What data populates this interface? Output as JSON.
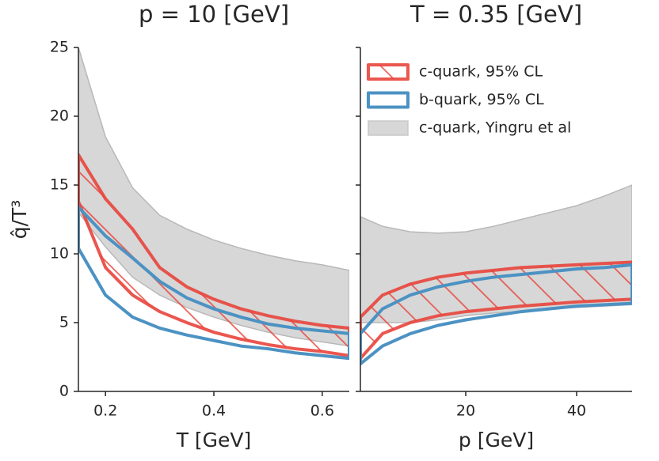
{
  "chart_data": [
    {
      "type": "band",
      "title": "p = 10 [GeV]",
      "xlabel": "T [GeV]",
      "ylabel": "q̂/T³",
      "x": [
        0.15,
        0.2,
        0.25,
        0.3,
        0.35,
        0.4,
        0.45,
        0.5,
        0.55,
        0.6,
        0.65
      ],
      "xlim": [
        0.15,
        0.65
      ],
      "xticks": [
        0.2,
        0.4,
        0.6
      ],
      "ylim": [
        0,
        25
      ],
      "yticks": [
        0,
        5,
        10,
        15,
        20,
        25
      ],
      "series": [
        {
          "color": "#d3d3d3",
          "style": "solid",
          "lower": [
            13.0,
            10.5,
            8.3,
            7.0,
            6.1,
            5.4,
            4.8,
            4.3,
            3.9,
            3.6,
            3.3
          ],
          "upper": [
            25,
            18.5,
            14.8,
            12.8,
            11.8,
            11.0,
            10.4,
            9.9,
            9.5,
            9.2,
            8.8
          ]
        },
        {
          "color": "#e8453c",
          "style": "hatch",
          "lower": [
            13.8,
            9.0,
            7.0,
            5.8,
            5.0,
            4.3,
            3.8,
            3.4,
            3.1,
            2.9,
            2.6
          ],
          "upper": [
            17.2,
            14.0,
            11.8,
            9.0,
            7.6,
            6.7,
            6.0,
            5.5,
            5.1,
            4.8,
            4.6
          ]
        },
        {
          "color": "#4c92c3",
          "style": "outline",
          "lower": [
            10.4,
            7.0,
            5.4,
            4.6,
            4.1,
            3.7,
            3.3,
            3.1,
            2.8,
            2.6,
            2.4
          ],
          "upper": [
            13.4,
            11.3,
            9.7,
            8.0,
            6.8,
            6.0,
            5.4,
            4.9,
            4.6,
            4.4,
            4.2
          ]
        }
      ]
    },
    {
      "type": "band",
      "title": "T = 0.35 [GeV]",
      "xlabel": "p [GeV]",
      "sharey": true,
      "legend": "upper right",
      "x": [
        1,
        5,
        10,
        15,
        20,
        25,
        30,
        35,
        40,
        45,
        50
      ],
      "xlim": [
        1,
        50
      ],
      "xticks": [
        20,
        40
      ],
      "series": [
        {
          "name": "c-quark, 95% CL",
          "color": "#e8453c",
          "style": "hatch",
          "lower": [
            2.4,
            4.2,
            5.0,
            5.5,
            5.8,
            6.0,
            6.2,
            6.35,
            6.5,
            6.6,
            6.7
          ],
          "upper": [
            5.4,
            7.0,
            7.8,
            8.3,
            8.6,
            8.8,
            9.0,
            9.1,
            9.2,
            9.3,
            9.4
          ]
        },
        {
          "name": "b-quark, 95% CL",
          "color": "#4c92c3",
          "style": "outline",
          "lower": [
            2.0,
            3.3,
            4.2,
            4.8,
            5.2,
            5.5,
            5.8,
            6.0,
            6.2,
            6.3,
            6.4
          ],
          "upper": [
            4.2,
            6.0,
            7.0,
            7.6,
            8.0,
            8.3,
            8.5,
            8.7,
            8.9,
            9.0,
            9.2
          ]
        },
        {
          "name": "c-quark, Yingru et al",
          "color": "#d3d3d3",
          "style": "solid",
          "lower": [
            5.0,
            5.0,
            5.0,
            5.2,
            5.5,
            5.7,
            5.8,
            6.0,
            6.1,
            6.2,
            6.3
          ],
          "upper": [
            12.7,
            12.0,
            11.6,
            11.5,
            11.6,
            12.0,
            12.5,
            13.0,
            13.5,
            14.2,
            15.0
          ]
        }
      ]
    }
  ]
}
